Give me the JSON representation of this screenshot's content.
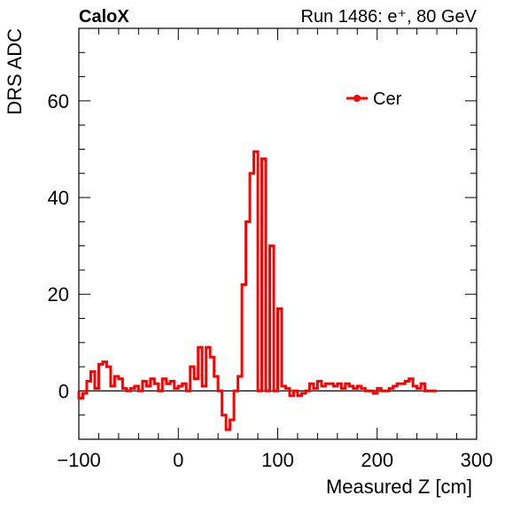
{
  "header": {
    "left": "CaloX",
    "right": "Run 1486: e⁺, 80 GeV"
  },
  "chart_data": {
    "type": "line",
    "style": "histogram-step",
    "title": "",
    "xlabel": "Measured Z [cm]",
    "ylabel": "DRS ADC",
    "xlim": [
      -100,
      300
    ],
    "ylim": [
      -10,
      75
    ],
    "xticks": [
      -100,
      0,
      100,
      200,
      300
    ],
    "yticks": [
      0,
      20,
      40,
      60
    ],
    "grid": false,
    "legend": {
      "position": "top-right",
      "entries": [
        "Cer"
      ]
    },
    "zero_line": true,
    "series": [
      {
        "name": "Cer",
        "color": "#ff0000",
        "bin_width": 4,
        "x_start": -100,
        "values": [
          -1.5,
          -0.5,
          2,
          4,
          0.5,
          5.5,
          6,
          5,
          1,
          3,
          2.5,
          0.5,
          0,
          0.5,
          1,
          0,
          2,
          1,
          2.5,
          1.5,
          0,
          2.5,
          1.5,
          2,
          0.5,
          1,
          1.5,
          0,
          5,
          2.5,
          9,
          1,
          9,
          7,
          3,
          0,
          -5,
          -8,
          -6,
          0,
          3,
          22,
          35,
          45,
          49.5,
          0,
          48,
          0,
          30,
          0,
          17,
          1,
          0.5,
          -1,
          0,
          -1,
          -0.5,
          0,
          1.5,
          0.5,
          2,
          1,
          1.5,
          1.5,
          1,
          1.5,
          0.5,
          1.5,
          1,
          0.5,
          1,
          0.5,
          0,
          0,
          -0.5,
          0.5,
          0,
          0,
          0.5,
          1,
          1.5,
          1.5,
          2,
          2.5,
          1,
          0.5,
          1.5,
          0,
          0,
          0
        ]
      }
    ]
  }
}
